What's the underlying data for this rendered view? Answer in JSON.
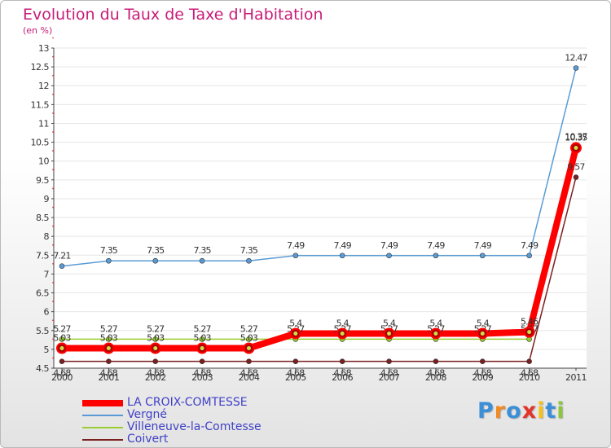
{
  "chart_data": {
    "type": "line",
    "title": "Evolution du Taux de Taxe d'Habitation",
    "subtitle": "(en %)",
    "x": [
      "2000",
      "2001",
      "2002",
      "2003",
      "2004",
      "2005",
      "2006",
      "2007",
      "2008",
      "2009",
      "2010",
      "2011"
    ],
    "y_ticks": [
      "4.5",
      "5",
      "5.5",
      "6",
      "6.5",
      "7",
      "7.5",
      "8",
      "8.5",
      "9",
      "9.5",
      "10",
      "10.5",
      "11",
      "11.5",
      "12",
      "12.5",
      "13"
    ],
    "ylim": [
      4.5,
      13
    ],
    "series": [
      {
        "name": "LA CROIX-COMTESSE",
        "color": "#ff0000",
        "values": [
          5.03,
          5.03,
          5.03,
          5.03,
          5.03,
          5.42,
          5.42,
          5.42,
          5.42,
          5.42,
          5.46,
          10.35
        ],
        "labels": [
          "5.03",
          "5.03",
          "5.03",
          "5.03",
          "5.03",
          "5.4",
          "5.4",
          "5.4",
          "5.4",
          "5.4",
          "5.46",
          "10.35"
        ]
      },
      {
        "name": "Vergné",
        "color": "#5b9bd5",
        "values": [
          7.21,
          7.35,
          7.35,
          7.35,
          7.35,
          7.49,
          7.49,
          7.49,
          7.49,
          7.49,
          7.49,
          12.47
        ],
        "labels": [
          "7.21",
          "7.35",
          "7.35",
          "7.35",
          "7.35",
          "7.49",
          "7.49",
          "7.49",
          "7.49",
          "7.49",
          "7.49",
          "12.47"
        ]
      },
      {
        "name": "Villeneuve-la-Comtesse",
        "color": "#9acd32",
        "values": [
          5.27,
          5.27,
          5.27,
          5.27,
          5.27,
          5.27,
          5.27,
          5.27,
          5.27,
          5.27,
          5.27,
          10.37
        ],
        "labels": [
          "5.27",
          "5.27",
          "5.27",
          "5.27",
          "5.27",
          "5.27",
          "5.27",
          "5.27",
          "5.27",
          "5.27",
          "5.27",
          "10.37"
        ]
      },
      {
        "name": "Coivert",
        "color": "#7b1f1f",
        "values": [
          4.68,
          4.68,
          4.68,
          4.68,
          4.68,
          4.68,
          4.68,
          4.68,
          4.68,
          4.68,
          4.68,
          9.57
        ],
        "labels": [
          "4.68",
          "4.68",
          "4.68",
          "4.68",
          "4.68",
          "4.68",
          "4.68",
          "4.68",
          "4.68",
          "4.68",
          "4.68",
          "9.57"
        ]
      }
    ]
  },
  "legend": {
    "items": [
      "LA CROIX-COMTESSE",
      "Vergné",
      "Villeneuve-la-Comtesse",
      "Coivert"
    ]
  },
  "logo": {
    "letters": [
      "P",
      "r",
      "o",
      "x",
      "i",
      "t",
      "i"
    ],
    "colors": [
      "#3a8fd8",
      "#f08a24",
      "#3a8fd8",
      "#e2342b",
      "#f5c21b",
      "#3a8fd8",
      "#8cc63f"
    ]
  }
}
